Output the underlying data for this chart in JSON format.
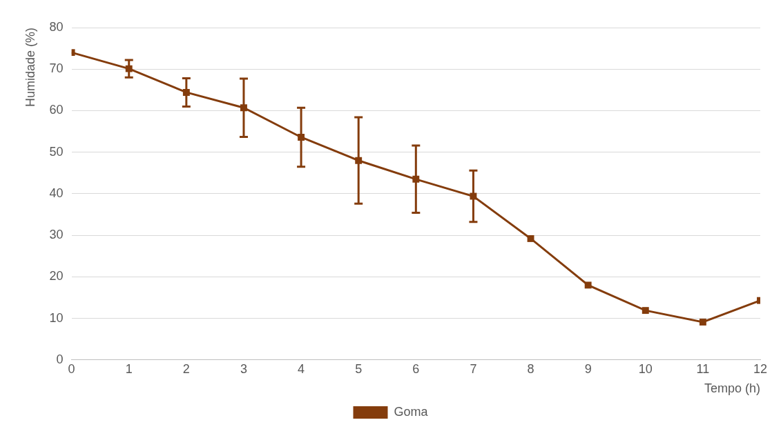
{
  "chart_data": {
    "type": "line",
    "xlabel": "Tempo (h)",
    "ylabel": "Humidade (%)",
    "x": [
      0,
      1,
      2,
      3,
      4,
      5,
      6,
      7,
      8,
      9,
      10,
      11,
      12
    ],
    "series": [
      {
        "name": "Goma",
        "color": "#843c0c",
        "values": [
          74.0,
          70.1,
          64.4,
          60.7,
          53.6,
          48.0,
          43.5,
          39.4,
          29.2,
          18.0,
          11.9,
          9.1,
          14.3
        ],
        "errors": [
          null,
          2.1,
          3.4,
          7.0,
          7.1,
          10.4,
          8.1,
          6.2,
          null,
          null,
          null,
          null,
          null
        ]
      }
    ],
    "xlim": [
      0,
      12
    ],
    "xticks": [
      0,
      1,
      2,
      3,
      4,
      5,
      6,
      7,
      8,
      9,
      10,
      11,
      12
    ],
    "ylim": [
      0,
      80
    ],
    "yticks": [
      0,
      10,
      20,
      30,
      40,
      50,
      60,
      70,
      80
    ],
    "grid": "y",
    "legend": "bottom",
    "marker": "square",
    "line_style": "solid"
  }
}
